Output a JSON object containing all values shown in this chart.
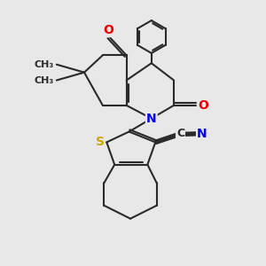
{
  "bg_color": "#e8e8e8",
  "bond_color": "#2a2a2a",
  "bond_width": 1.5,
  "atom_colors": {
    "N": "#0000ee",
    "O": "#ee0000",
    "S": "#ccaa00",
    "C": "#2a2a2a",
    "N2": "#0000ee"
  },
  "font_size": 10,
  "fig_size": [
    3.0,
    3.0
  ],
  "dpi": 100,
  "xlim": [
    0,
    10
  ],
  "ylim": [
    0,
    10
  ]
}
